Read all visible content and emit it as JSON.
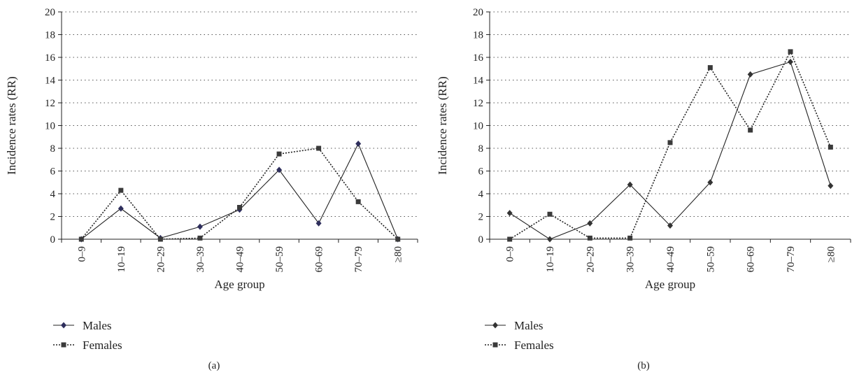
{
  "chart_data": [
    {
      "type": "line",
      "panel_label": "(a)",
      "xlabel": "Age group",
      "ylabel": "Incidence rates (RR)",
      "categories": [
        "0–9",
        "10–19",
        "20–29",
        "30–39",
        "40–49",
        "50–59",
        "60–69",
        "70–79",
        "≥80"
      ],
      "ylim": [
        0,
        20
      ],
      "yticks": [
        0,
        2,
        4,
        6,
        8,
        10,
        12,
        14,
        16,
        18,
        20
      ],
      "grid": true,
      "legend_position": "bottom-left",
      "series": [
        {
          "name": "Males",
          "values": [
            0,
            2.7,
            0.1,
            1.1,
            2.6,
            6.1,
            1.4,
            8.4,
            0
          ],
          "line_style": "solid",
          "marker": "diamond",
          "color": "#2e2e5c"
        },
        {
          "name": "Females",
          "values": [
            0,
            4.3,
            0,
            0.1,
            2.8,
            7.5,
            8.0,
            3.3,
            0
          ],
          "line_style": "dotted",
          "marker": "square",
          "color": "#3a3a3a"
        }
      ]
    },
    {
      "type": "line",
      "panel_label": "(b)",
      "xlabel": "Age group",
      "ylabel": "Incidence rates (RR)",
      "categories": [
        "0–9",
        "10–19",
        "20–29",
        "30–39",
        "40–49",
        "50–59",
        "60–69",
        "70–79",
        "≥80"
      ],
      "ylim": [
        0,
        20
      ],
      "yticks": [
        0,
        2,
        4,
        6,
        8,
        10,
        12,
        14,
        16,
        18,
        20
      ],
      "grid": true,
      "legend_position": "bottom-left",
      "series": [
        {
          "name": "Males",
          "values": [
            2.3,
            0,
            1.4,
            4.8,
            1.2,
            5.0,
            14.5,
            15.6,
            4.7
          ],
          "line_style": "solid",
          "marker": "diamond",
          "color": "#333333"
        },
        {
          "name": "Females",
          "values": [
            0,
            2.2,
            0.1,
            0.1,
            8.5,
            15.1,
            9.6,
            16.5,
            8.1
          ],
          "line_style": "dotted",
          "marker": "square",
          "color": "#3a3a3a"
        }
      ]
    }
  ]
}
